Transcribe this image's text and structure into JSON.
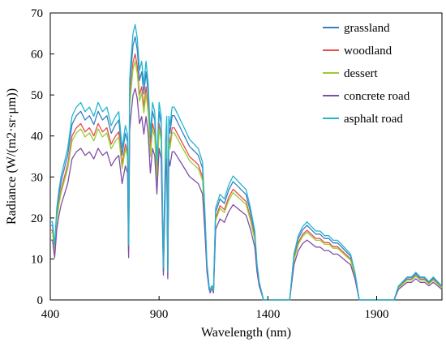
{
  "chart_data": {
    "type": "line",
    "title": "",
    "xlabel": "Wavelength (nm)",
    "ylabel": "Radiance (W/(m2·sr·μm))",
    "xlim": [
      400,
      2200
    ],
    "ylim": [
      0,
      70
    ],
    "xticks": [
      400,
      900,
      1400,
      1900
    ],
    "yticks": [
      0,
      10,
      20,
      30,
      40,
      50,
      60,
      70
    ],
    "grid": false,
    "legend_position": "top-right",
    "base_profile": {
      "x": [
        400,
        410,
        420,
        430,
        440,
        450,
        460,
        480,
        500,
        520,
        540,
        560,
        580,
        600,
        620,
        640,
        660,
        680,
        700,
        715,
        730,
        745,
        755,
        760,
        765,
        770,
        780,
        790,
        800,
        810,
        820,
        830,
        840,
        850,
        860,
        870,
        880,
        890,
        900,
        910,
        920,
        930,
        935,
        940,
        945,
        950,
        960,
        970,
        980,
        990,
        1000,
        1020,
        1040,
        1060,
        1080,
        1100,
        1110,
        1120,
        1130,
        1135,
        1140,
        1145,
        1150,
        1160,
        1180,
        1200,
        1220,
        1240,
        1260,
        1280,
        1300,
        1320,
        1340,
        1350,
        1360,
        1380,
        1400,
        1420,
        1440,
        1460,
        1480,
        1500,
        1520,
        1540,
        1560,
        1580,
        1600,
        1620,
        1640,
        1660,
        1680,
        1700,
        1720,
        1740,
        1760,
        1780,
        1800,
        1810,
        1820,
        1840,
        1860,
        1880,
        1900,
        1920,
        1940,
        1950,
        1960,
        1980,
        2000,
        2020,
        2040,
        2060,
        2080,
        2100,
        2120,
        2140,
        2160,
        2180,
        2200
      ],
      "y": [
        17,
        17,
        12,
        20,
        24,
        27,
        29,
        33,
        40,
        42,
        43,
        41,
        42,
        40,
        43,
        41,
        42,
        38,
        40,
        41,
        33,
        38,
        36,
        12,
        48,
        52,
        58,
        60,
        57,
        50,
        52,
        47,
        52,
        47,
        36,
        43,
        41,
        30,
        43,
        40,
        7,
        35,
        40,
        6,
        40,
        38,
        42,
        42,
        41,
        40,
        39,
        37,
        35,
        34,
        33,
        30,
        20,
        8,
        3,
        2,
        3,
        3,
        2,
        20,
        23,
        22,
        25,
        27,
        26,
        25,
        24,
        20,
        15,
        8,
        4,
        0,
        0,
        0,
        0,
        0,
        0,
        0,
        10,
        14,
        16,
        17,
        16,
        15,
        15,
        14,
        14,
        13,
        13,
        12,
        11,
        10,
        6,
        3,
        0,
        0,
        0,
        0,
        0,
        0,
        0,
        0,
        0,
        0,
        3,
        4,
        5,
        5,
        6,
        5,
        5,
        4,
        5,
        4,
        3
      ]
    },
    "series": [
      {
        "name": "grassland",
        "color": "#3a7dc1",
        "scale": 1.07
      },
      {
        "name": "woodland",
        "color": "#e84c4c",
        "scale": 1.0
      },
      {
        "name": "dessert",
        "color": "#9acd32",
        "scale": 0.97
      },
      {
        "name": "concrete road",
        "color": "#7f4ea8",
        "scale": 0.86
      },
      {
        "name": "asphalt road",
        "color": "#21b5d0",
        "scale": 1.12
      }
    ]
  }
}
